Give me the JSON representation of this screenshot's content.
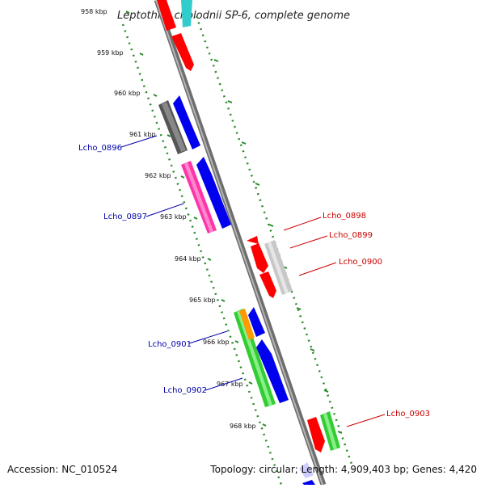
{
  "title": "Leptothrix cholodnii SP-6, complete genome",
  "footer": {
    "accession": "Accession: NC_010524",
    "topology": "Topology: circular; Length: 4,909,403 bp; Genes: 4,420"
  },
  "ticks": [
    "958 kbp",
    "959 kbp",
    "960 kbp",
    "961 kbp",
    "962 kbp",
    "963 kbp",
    "964 kbp",
    "965 kbp",
    "966 kbp",
    "967 kbp",
    "968 kbp"
  ],
  "gene_labels": {
    "Lcho_0896": "Lcho_0896",
    "Lcho_0897": "Lcho_0897",
    "Lcho_0898": "Lcho_0898",
    "Lcho_0899": "Lcho_0899",
    "Lcho_0900": "Lcho_0900",
    "Lcho_0901": "Lcho_0901",
    "Lcho_0902": "Lcho_0902",
    "Lcho_0903": "Lcho_0903"
  },
  "colors": {
    "backbone": "#8a8a8a",
    "tick_dots": "#2a8a2a",
    "strand_minus_label": "#0000aa",
    "strand_plus_label": "#cc0000",
    "red_feature": "#ff0000",
    "blue_feature": "#0000ee",
    "grey_feature": "#777777",
    "pink_feature": "#ff33aa",
    "green_feature": "#33cc33",
    "orange_feature": "#ff9900",
    "cyan_feature": "#33cccc",
    "lightgrey_feature": "#c8c8c8"
  }
}
